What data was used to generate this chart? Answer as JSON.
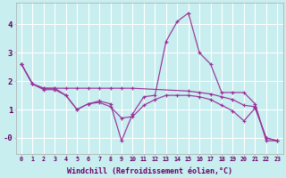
{
  "xlabel": "Windchill (Refroidissement éolien,°C)",
  "background_color": "#c8eef0",
  "grid_color": "#ffffff",
  "line_color": "#993399",
  "xlim": [
    -0.5,
    23.5
  ],
  "ylim": [
    -0.55,
    4.75
  ],
  "xticks": [
    0,
    1,
    2,
    3,
    4,
    5,
    6,
    7,
    8,
    9,
    10,
    11,
    12,
    13,
    14,
    15,
    16,
    17,
    18,
    19,
    20,
    21,
    22,
    23
  ],
  "yticks": [
    0,
    1,
    2,
    3,
    4
  ],
  "ytick_labels": [
    "-0",
    "1",
    "2",
    "3",
    "4"
  ],
  "series": [
    {
      "x": [
        0,
        1,
        2,
        3,
        4,
        5,
        6,
        7,
        8,
        9,
        10,
        11,
        12,
        13,
        14,
        15,
        16,
        17,
        18,
        19,
        20,
        21,
        22,
        23
      ],
      "y": [
        2.6,
        1.9,
        1.75,
        1.75,
        1.5,
        1.0,
        1.2,
        1.3,
        1.2,
        -0.1,
        0.85,
        1.45,
        1.5,
        3.4,
        4.1,
        4.4,
        3.0,
        2.6,
        1.6,
        1.6,
        1.6,
        1.2,
        -0.1,
        -0.1
      ]
    },
    {
      "x": [
        0,
        1,
        2,
        3,
        4,
        5,
        6,
        7,
        8,
        9,
        10,
        15,
        16,
        17,
        18,
        19,
        20,
        21,
        22,
        23
      ],
      "y": [
        2.6,
        1.9,
        1.75,
        1.75,
        1.75,
        1.75,
        1.75,
        1.75,
        1.75,
        1.75,
        1.75,
        1.65,
        1.6,
        1.55,
        1.45,
        1.35,
        1.15,
        1.1,
        0.0,
        -0.1
      ]
    },
    {
      "x": [
        0,
        1,
        2,
        3,
        4,
        5,
        6,
        7,
        8,
        9,
        10,
        11,
        12,
        13,
        14,
        15,
        16,
        17,
        18,
        19,
        20,
        21,
        22,
        23
      ],
      "y": [
        2.6,
        1.9,
        1.7,
        1.7,
        1.5,
        1.0,
        1.2,
        1.25,
        1.1,
        0.7,
        0.75,
        1.15,
        1.35,
        1.5,
        1.5,
        1.5,
        1.45,
        1.35,
        1.15,
        0.95,
        0.6,
        1.05,
        0.0,
        -0.1
      ]
    }
  ]
}
